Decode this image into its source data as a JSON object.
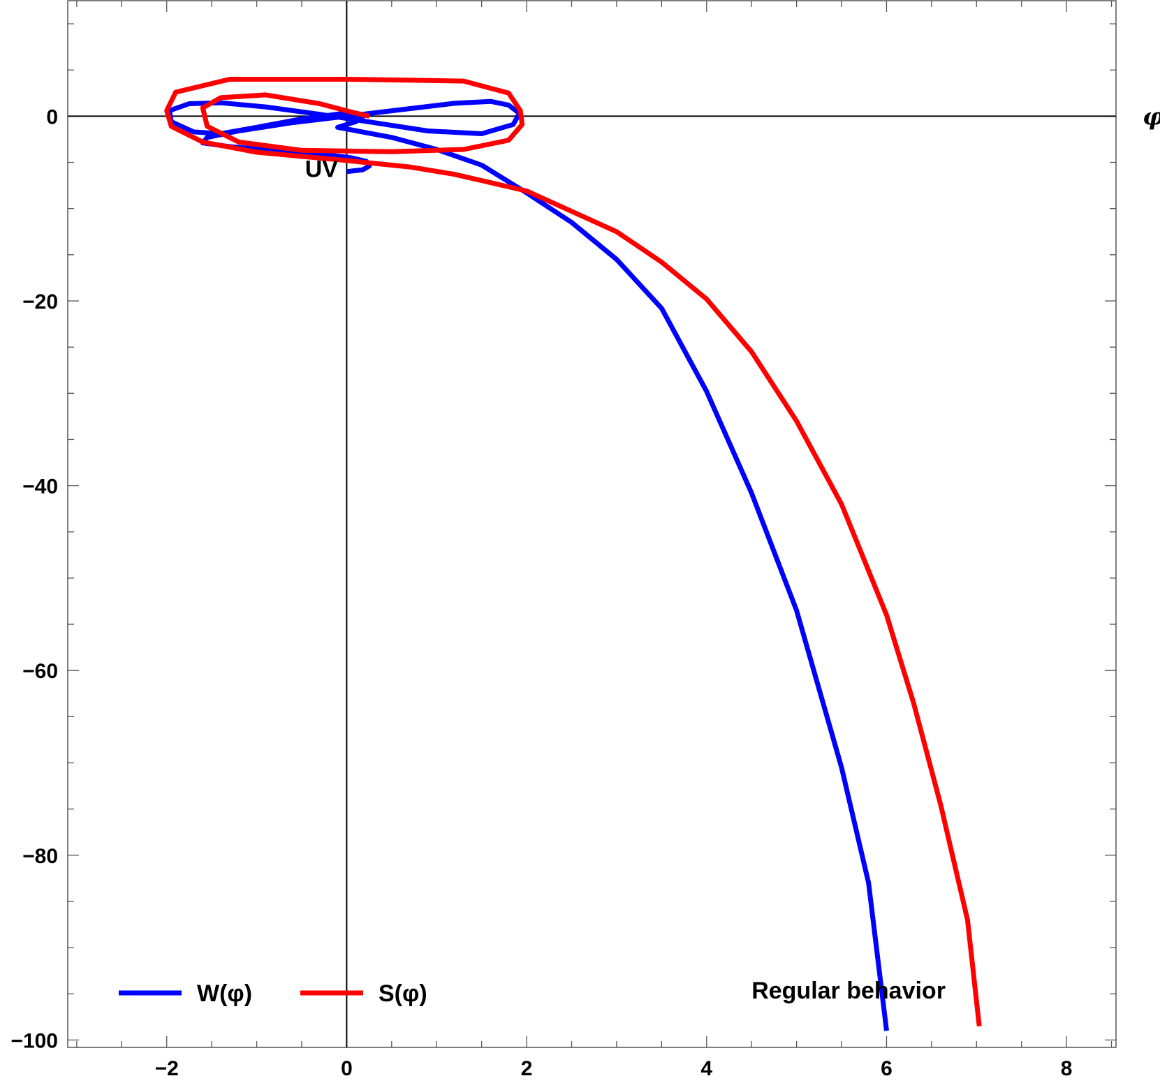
{
  "chart_data": {
    "type": "line",
    "title": "",
    "xlabel": "φ",
    "ylabel": "",
    "xlim": [
      -3.1,
      8.55
    ],
    "ylim": [
      -100.8,
      12.5
    ],
    "grid": false,
    "legend_position": "bottom-left",
    "x_ticks": [
      {
        "value": -2,
        "label": "−2"
      },
      {
        "value": 0,
        "label": "0"
      },
      {
        "value": 2,
        "label": "2"
      },
      {
        "value": 4,
        "label": "4"
      },
      {
        "value": 6,
        "label": "6"
      },
      {
        "value": 8,
        "label": "8"
      }
    ],
    "y_ticks": [
      {
        "value": 0,
        "label": "0"
      },
      {
        "value": -20,
        "label": "−20"
      },
      {
        "value": -40,
        "label": "−40"
      },
      {
        "value": -60,
        "label": "−60"
      },
      {
        "value": -80,
        "label": "−80"
      },
      {
        "value": -100,
        "label": "−100"
      }
    ],
    "series": [
      {
        "name": "W(φ)",
        "color": "#0000ff",
        "points": [
          [
            0.0,
            -6.0
          ],
          [
            0.18,
            -5.8
          ],
          [
            0.25,
            -5.4
          ],
          [
            0.22,
            -4.9
          ],
          [
            0.05,
            -4.5
          ],
          [
            -0.3,
            -4.1
          ],
          [
            -0.8,
            -3.7
          ],
          [
            -1.3,
            -3.3
          ],
          [
            -1.6,
            -2.9
          ],
          [
            -1.55,
            -2.3
          ],
          [
            -1.2,
            -1.6
          ],
          [
            -0.6,
            -0.7
          ],
          [
            0.0,
            0.0
          ],
          [
            0.6,
            0.7
          ],
          [
            1.2,
            1.4
          ],
          [
            1.6,
            1.6
          ],
          [
            1.8,
            1.2
          ],
          [
            1.92,
            0.3
          ],
          [
            1.85,
            -0.9
          ],
          [
            1.5,
            -1.9
          ],
          [
            0.9,
            -1.6
          ],
          [
            0.3,
            -0.7
          ],
          [
            -0.3,
            0.2
          ],
          [
            -0.9,
            1.0
          ],
          [
            -1.4,
            1.45
          ],
          [
            -1.75,
            1.35
          ],
          [
            -1.97,
            0.6
          ],
          [
            -1.95,
            -0.6
          ],
          [
            -1.7,
            -1.7
          ],
          [
            -1.4,
            -1.9
          ],
          [
            -1.0,
            -1.2
          ],
          [
            -0.5,
            -0.3
          ],
          [
            0.0,
            0.35
          ],
          [
            0.2,
            0.1
          ],
          [
            0.1,
            -0.6
          ],
          [
            -0.1,
            -1.2
          ],
          [
            0.5,
            -2.3
          ],
          [
            1.0,
            -3.6
          ],
          [
            1.5,
            -5.3
          ],
          [
            2.0,
            -8.3
          ],
          [
            2.5,
            -11.5
          ],
          [
            3.0,
            -15.5
          ],
          [
            3.5,
            -20.8
          ],
          [
            4.0,
            -29.8
          ],
          [
            4.5,
            -40.8
          ],
          [
            5.0,
            -53.5
          ],
          [
            5.5,
            -70.5
          ],
          [
            5.8,
            -83.0
          ],
          [
            6.0,
            -99.0
          ]
        ]
      },
      {
        "name": "S(φ)",
        "color": "#ff0000",
        "points": [
          [
            0.25,
            0.0
          ],
          [
            0.05,
            0.45
          ],
          [
            -0.3,
            1.35
          ],
          [
            -0.9,
            2.3
          ],
          [
            -1.4,
            2.0
          ],
          [
            -1.6,
            0.9
          ],
          [
            -1.55,
            -1.1
          ],
          [
            -1.2,
            -2.8
          ],
          [
            -0.5,
            -3.7
          ],
          [
            0.5,
            -3.85
          ],
          [
            1.3,
            -3.6
          ],
          [
            1.8,
            -2.6
          ],
          [
            1.95,
            -0.9
          ],
          [
            1.93,
            0.6
          ],
          [
            1.8,
            2.5
          ],
          [
            1.3,
            3.8
          ],
          [
            0.0,
            4.0
          ],
          [
            -1.3,
            4.0
          ],
          [
            -1.9,
            2.6
          ],
          [
            -2.0,
            0.6
          ],
          [
            -1.95,
            -1.1
          ],
          [
            -1.6,
            -2.8
          ],
          [
            -1.0,
            -3.9
          ],
          [
            0.0,
            -4.8
          ],
          [
            0.7,
            -5.5
          ],
          [
            1.2,
            -6.3
          ],
          [
            2.0,
            -8.1
          ],
          [
            3.0,
            -12.5
          ],
          [
            3.5,
            -15.8
          ],
          [
            4.0,
            -19.8
          ],
          [
            4.5,
            -25.5
          ],
          [
            5.0,
            -33.0
          ],
          [
            5.5,
            -42.0
          ],
          [
            6.0,
            -54.0
          ],
          [
            6.3,
            -63.5
          ],
          [
            6.6,
            -74.5
          ],
          [
            6.9,
            -87.0
          ],
          [
            7.03,
            -98.5
          ]
        ]
      }
    ],
    "annotations": [
      {
        "text": "UV",
        "x": -0.28,
        "y": -6.6
      },
      {
        "text": "Regular behavior",
        "x": 4.5,
        "y": -95.5
      }
    ]
  }
}
